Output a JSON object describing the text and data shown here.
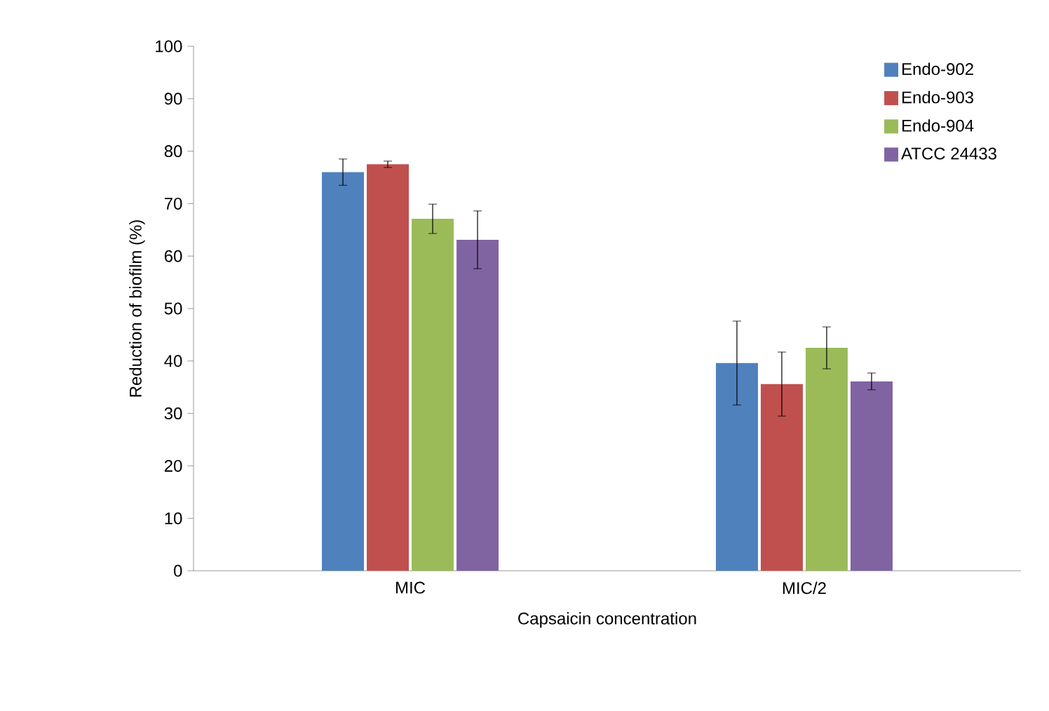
{
  "chart_data": {
    "type": "bar",
    "xlabel": "Capsaicin concentration",
    "ylabel": "Reduction of biofilm (%)",
    "categories": [
      "MIC",
      "MIC/2"
    ],
    "series": [
      {
        "name": "Endo-902",
        "color": "#4f81bd",
        "values": [
          76,
          39.6
        ],
        "errors": [
          2.5,
          8
        ]
      },
      {
        "name": "Endo-903",
        "color": "#c0504d",
        "values": [
          77.5,
          35.6
        ],
        "errors": [
          0.6,
          6.1
        ]
      },
      {
        "name": "Endo-904",
        "color": "#9bbb59",
        "values": [
          67.1,
          42.5
        ],
        "errors": [
          2.8,
          4
        ]
      },
      {
        "name": "ATCC 24433",
        "color": "#8064a2",
        "values": [
          63.1,
          36.1
        ],
        "errors": [
          5.5,
          1.6
        ]
      }
    ],
    "ylim": [
      0,
      100
    ],
    "yticks": [
      0,
      10,
      20,
      30,
      40,
      50,
      60,
      70,
      80,
      90,
      100
    ],
    "grid": false,
    "legend": "top right"
  }
}
